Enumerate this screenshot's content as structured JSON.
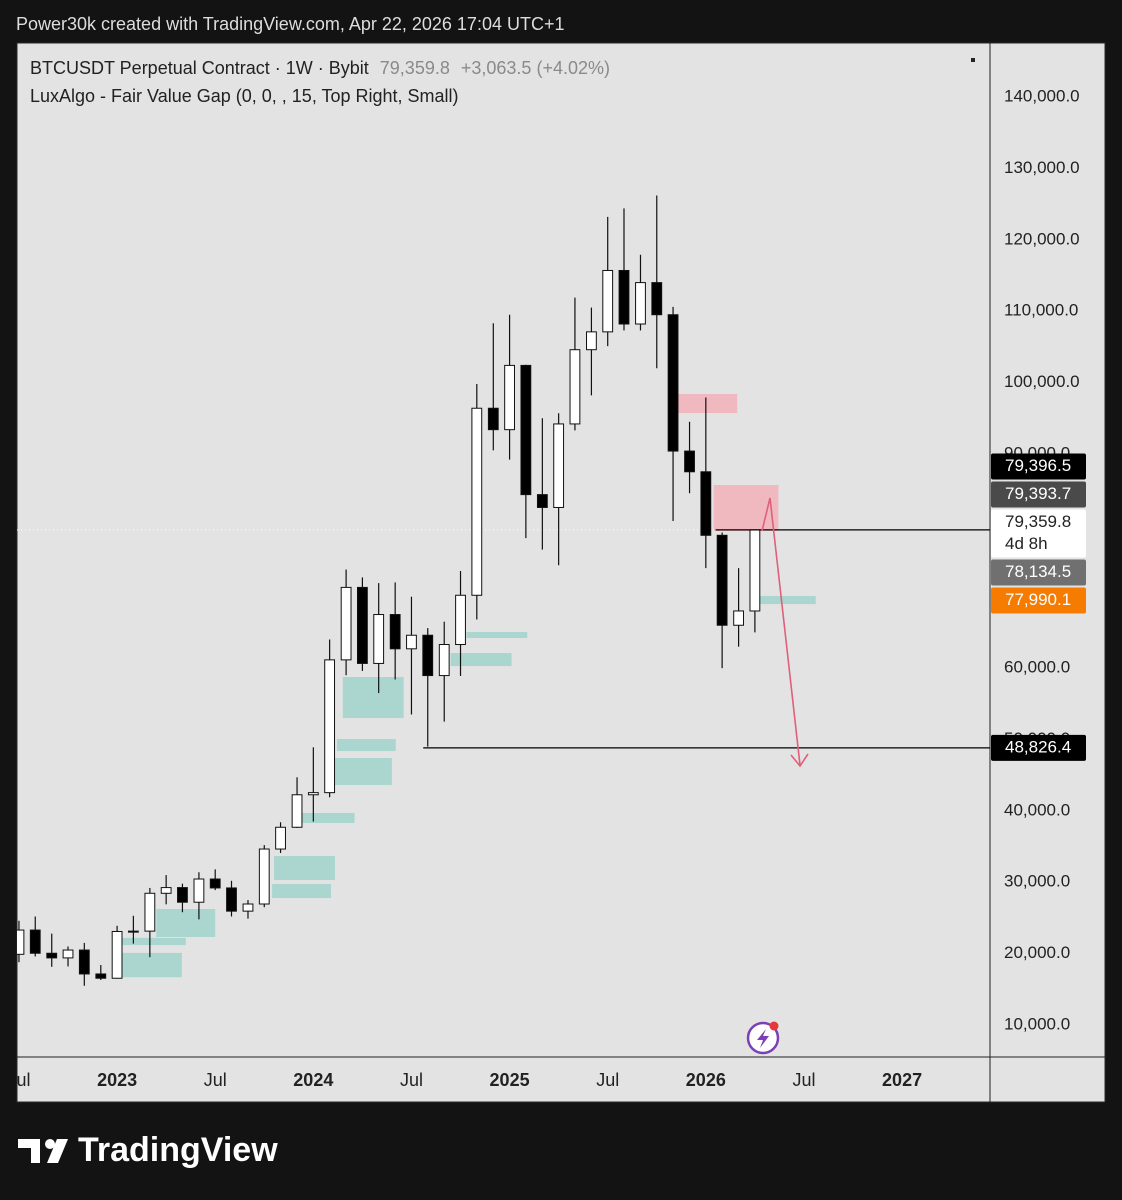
{
  "header": "Power30k created with TradingView.com, Apr 22, 2026 17:04 UTC+1",
  "footer": "TradingView",
  "chart_data": {
    "type": "candlestick",
    "title": "BTCUSDT Perpetual Contract · 1W · Bybit",
    "last_price": {
      "value": 79359.8,
      "label": "79,359.8"
    },
    "change": "+3,063.5 (+4.02%)",
    "indicator": "LuxAlgo - Fair Value Gap (0, 0, , 15, Top Right, Small)",
    "x": [
      2022.5,
      2022.583,
      2022.667,
      2022.75,
      2022.833,
      2022.917,
      2023,
      2023.083,
      2023.167,
      2023.25,
      2023.333,
      2023.417,
      2023.5,
      2023.583,
      2023.667,
      2023.75,
      2023.833,
      2023.917,
      2024,
      2024.083,
      2024.167,
      2024.25,
      2024.333,
      2024.417,
      2024.5,
      2024.583,
      2024.667,
      2024.75,
      2024.833,
      2024.917,
      2025,
      2025.083,
      2025.167,
      2025.25,
      2025.333,
      2025.417,
      2025.5,
      2025.583,
      2025.667,
      2025.75,
      2025.833,
      2025.917,
      2026,
      2026.083,
      2026.167,
      2026.25
    ],
    "open": [
      19900,
      23300,
      20050,
      19400,
      20500,
      17150,
      16550,
      23100,
      23150,
      28450,
      29250,
      27200,
      30450,
      29200,
      25950,
      26950,
      34650,
      37700,
      42250,
      42550,
      61150,
      71300,
      60650,
      67500,
      62700,
      64600,
      58950,
      63300,
      70200,
      96400,
      93400,
      102400,
      84300,
      82500,
      94200,
      104600,
      107100,
      115700,
      108200,
      114000,
      109500,
      90400,
      87500,
      78600,
      66000,
      68000
    ],
    "high": [
      24600,
      25200,
      22800,
      21000,
      21500,
      18400,
      23900,
      25300,
      29200,
      31000,
      29800,
      31400,
      31800,
      30200,
      27500,
      35200,
      38400,
      44700,
      48900,
      64000,
      73800,
      72700,
      71900,
      72000,
      70000,
      65600,
      66500,
      73600,
      99800,
      108300,
      109500,
      102500,
      95000,
      95700,
      111900,
      110500,
      123200,
      124400,
      117900,
      126200,
      110600,
      94500,
      97900,
      79000,
      74000,
      79400
    ],
    "low": [
      18800,
      19600,
      18150,
      18200,
      15500,
      16300,
      16500,
      21400,
      19500,
      26900,
      25800,
      24800,
      28900,
      25200,
      24900,
      26500,
      34100,
      37600,
      38500,
      41900,
      59000,
      59600,
      56500,
      58400,
      53500,
      49000,
      52500,
      58900,
      66800,
      90500,
      89200,
      78200,
      76600,
      74400,
      93300,
      98200,
      105100,
      107300,
      107300,
      102000,
      80600,
      84500,
      74000,
      60000,
      63000,
      65000
    ],
    "close": [
      23300,
      20050,
      19400,
      20500,
      17150,
      16550,
      23100,
      23150,
      28450,
      29250,
      27200,
      30450,
      29200,
      25950,
      26950,
      34650,
      37700,
      42250,
      42550,
      61150,
      71300,
      60650,
      67500,
      62700,
      64600,
      58950,
      63300,
      70200,
      96400,
      93400,
      102400,
      84300,
      82500,
      94200,
      104600,
      107100,
      115700,
      108200,
      114000,
      109500,
      90400,
      87500,
      78600,
      66000,
      68000,
      79359.8
    ],
    "up_color": "#ffffff",
    "down_color": "#000000",
    "xlim": [
      2022.49,
      2027.448
    ],
    "xticks": [
      {
        "value": 2022.5,
        "label": "Jul"
      },
      2023,
      {
        "value": 2023.5,
        "label": "Jul"
      },
      2024,
      {
        "value": 2024.5,
        "label": "Jul"
      },
      2025,
      {
        "value": 2025.5,
        "label": "Jul"
      },
      2026,
      {
        "value": 2026.5,
        "label": "Jul"
      },
      2027
    ],
    "ylim": [
      5517,
      147565
    ],
    "yticks": [
      {
        "value": 140000,
        "label": "140,000.0"
      },
      {
        "value": 130000,
        "label": "130,000.0"
      },
      {
        "value": 120000,
        "label": "120,000.0"
      },
      {
        "value": 110000,
        "label": "110,000.0"
      },
      {
        "value": 100000,
        "label": "100,000.0"
      },
      {
        "value": 90000,
        "label": "90,000.0"
      },
      {
        "value": 80000,
        "label": "80,000.0"
      },
      {
        "value": 70000,
        "label": "70,000.0"
      },
      {
        "value": 60000,
        "label": "60,000.0"
      },
      {
        "value": 50000,
        "label": "50,000.0"
      },
      {
        "value": 40000,
        "label": "40,000.0"
      },
      {
        "value": 30000,
        "label": "30,000.0"
      },
      {
        "value": 20000,
        "label": "20,000.0"
      },
      {
        "value": 10000,
        "label": "10,000.0"
      }
    ],
    "grid": false,
    "fvg": [
      {
        "x": [
          2023.02,
          2023.33
        ],
        "y": [
          16700,
          20100
        ],
        "color": "#a3d4cc"
      },
      {
        "x": [
          2023.02,
          2023.35
        ],
        "y": [
          21200,
          22200
        ],
        "color": "#a3d4cc"
      },
      {
        "x": [
          2023.2,
          2023.5
        ],
        "y": [
          22330,
          26250
        ],
        "color": "#a3d4cc"
      },
      {
        "x": [
          2023.79,
          2024.09
        ],
        "y": [
          27790,
          29750
        ],
        "color": "#a3d4cc"
      },
      {
        "x": [
          2023.8,
          2024.11
        ],
        "y": [
          30310,
          33670
        ],
        "color": "#a3d4cc"
      },
      {
        "x": [
          2023.89,
          2024.21
        ],
        "y": [
          38300,
          39700
        ],
        "color": "#a3d4cc"
      },
      {
        "x": [
          2024.1,
          2024.4
        ],
        "y": [
          43620,
          47400
        ],
        "color": "#a3d4cc"
      },
      {
        "x": [
          2024.12,
          2024.42
        ],
        "y": [
          48380,
          50060
        ],
        "color": "#a3d4cc"
      },
      {
        "x": [
          2024.15,
          2024.46
        ],
        "y": [
          53000,
          58750
        ],
        "color": "#a3d4cc"
      },
      {
        "x": [
          2024.7,
          2025.01
        ],
        "y": [
          60290,
          62110
        ],
        "color": "#a3d4cc"
      },
      {
        "x": [
          2024.78,
          2025.09
        ],
        "y": [
          64210,
          65050
        ],
        "color": "#a3d4cc"
      },
      {
        "x": [
          2026.25,
          2026.56
        ],
        "y": [
          68970,
          70100
        ],
        "color": "#a3d4cc"
      },
      {
        "x": [
          2025.83,
          2026.16
        ],
        "y": [
          95730,
          98390
        ],
        "color": "#f0b4ba"
      },
      {
        "x": [
          2026.04,
          2026.37
        ],
        "y": [
          79200,
          85640
        ],
        "color": "#f0b4ba"
      }
    ],
    "price_lines": [
      {
        "value": 48826.4,
        "x_start": 2024.56,
        "color": "#000000"
      },
      {
        "value": 79359.8,
        "x_start": 2026.05,
        "color": "#000000"
      }
    ],
    "price_labels": [
      {
        "value": 79396.5,
        "label": "79,396.5",
        "color": "#000000",
        "text_color": "#ffffff"
      },
      {
        "value": 79393.7,
        "label": "79,393.7",
        "color": "#4a4a4a",
        "text_color": "#ffffff"
      },
      {
        "value": 79359.8,
        "label": "79,359.8",
        "countdown": "4d 8h",
        "color": "#ffffff",
        "text_color": "#222222"
      },
      {
        "value": 78134.5,
        "label": "78,134.5",
        "color": "#707070",
        "text_color": "#ffffff"
      },
      {
        "value": 77990.1,
        "label": "77,990.1",
        "color": "#f57c00",
        "text_color": "#ffffff"
      },
      {
        "value": 48826.4,
        "label": "48,826.4",
        "color": "#000000",
        "text_color": "#ffffff"
      }
    ]
  }
}
